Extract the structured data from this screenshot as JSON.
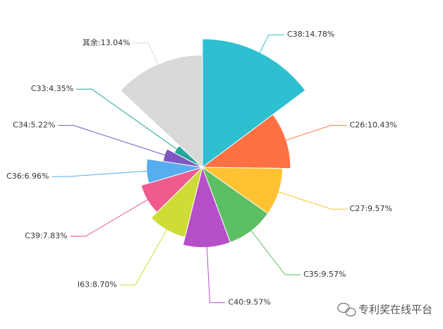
{
  "chart_data": {
    "type": "rose",
    "values": [
      14.78,
      10.43,
      9.57,
      9.57,
      9.57,
      8.7,
      7.83,
      6.96,
      5.22,
      4.35,
      13.04
    ],
    "value_labels": [
      "C38:14.78%",
      "C26:10.43%",
      "C27:9.57%",
      "C35:9.57%",
      "C40:9.57%",
      "I63:8.70%",
      "C39:7.83%",
      "C36:6.96%",
      "C34:5.22%",
      "C33:4.35%",
      "其余:13.04%"
    ],
    "colors": [
      "#2ec0d1",
      "#ff7043",
      "#ffc233",
      "#5cbf63",
      "#b54fc7",
      "#cddc37",
      "#ef5a8f",
      "#56adef",
      "#7e57c2",
      "#26a69a",
      "#d9d9d9"
    ]
  },
  "watermark": "专利奖在线平台"
}
